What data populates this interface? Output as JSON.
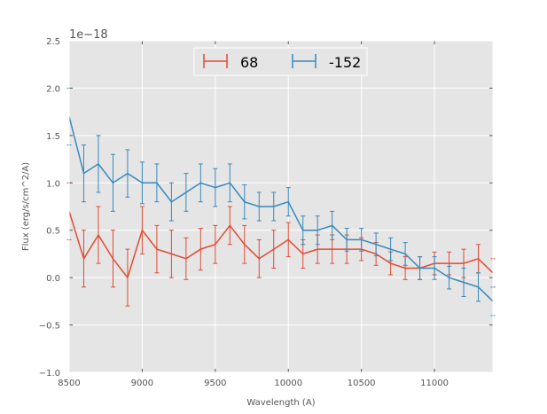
{
  "chart_data": {
    "type": "line",
    "title": "",
    "xlabel": "Wavelength (A)",
    "ylabel": "Flux (erg/s/cm^2/A)",
    "y_offset_label": "1e−18",
    "xlim": [
      8500,
      11400
    ],
    "ylim": [
      -1.0,
      2.5
    ],
    "xticks": [
      8500,
      9000,
      9500,
      10000,
      10500,
      11000
    ],
    "xtick_labels": [
      "8500",
      "9000",
      "9500",
      "10000",
      "10500",
      "11000"
    ],
    "yticks": [
      -1.0,
      -0.5,
      0.0,
      0.5,
      1.0,
      1.5,
      2.0,
      2.5
    ],
    "ytick_labels": [
      "−1.0",
      "−0.5",
      "0.0",
      "0.5",
      "1.0",
      "1.5",
      "2.0",
      "2.5"
    ],
    "grid": true,
    "legend_position": "top-center",
    "series": [
      {
        "name": "68",
        "color": "#E24A33",
        "x": [
          8500,
          8600,
          8700,
          8800,
          8900,
          9000,
          9100,
          9200,
          9300,
          9400,
          9500,
          9600,
          9700,
          9800,
          9900,
          10000,
          10100,
          10200,
          10300,
          10400,
          10500,
          10600,
          10700,
          10800,
          10900,
          11000,
          11100,
          11200,
          11300,
          11400
        ],
        "y": [
          0.7,
          0.2,
          0.45,
          0.2,
          0.0,
          0.5,
          0.3,
          0.25,
          0.2,
          0.3,
          0.35,
          0.55,
          0.35,
          0.2,
          0.3,
          0.4,
          0.25,
          0.3,
          0.3,
          0.3,
          0.3,
          0.25,
          0.15,
          0.1,
          0.1,
          0.15,
          0.15,
          0.15,
          0.2,
          0.05
        ],
        "err": [
          0.3,
          0.3,
          0.3,
          0.3,
          0.3,
          0.25,
          0.25,
          0.25,
          0.22,
          0.22,
          0.2,
          0.2,
          0.2,
          0.2,
          0.2,
          0.18,
          0.15,
          0.15,
          0.15,
          0.15,
          0.12,
          0.12,
          0.12,
          0.12,
          0.12,
          0.12,
          0.12,
          0.15,
          0.15,
          0.15
        ]
      },
      {
        "name": "-152",
        "color": "#348ABD",
        "x": [
          8500,
          8600,
          8700,
          8800,
          8900,
          9000,
          9100,
          9200,
          9300,
          9400,
          9500,
          9600,
          9700,
          9800,
          9900,
          10000,
          10100,
          10200,
          10300,
          10400,
          10500,
          10600,
          10700,
          10800,
          10900,
          11000,
          11100,
          11200,
          11300,
          11400
        ],
        "y": [
          1.7,
          1.1,
          1.2,
          1.0,
          1.1,
          1.0,
          1.0,
          0.8,
          0.9,
          1.0,
          0.95,
          1.0,
          0.8,
          0.75,
          0.75,
          0.8,
          0.5,
          0.5,
          0.55,
          0.4,
          0.4,
          0.35,
          0.3,
          0.25,
          0.1,
          0.1,
          0.0,
          -0.05,
          -0.1,
          -0.25
        ],
        "err": [
          0.3,
          0.3,
          0.3,
          0.3,
          0.25,
          0.22,
          0.2,
          0.2,
          0.2,
          0.2,
          0.2,
          0.2,
          0.18,
          0.15,
          0.15,
          0.15,
          0.15,
          0.15,
          0.15,
          0.12,
          0.12,
          0.12,
          0.12,
          0.12,
          0.12,
          0.12,
          0.12,
          0.15,
          0.15,
          0.15
        ]
      }
    ]
  }
}
